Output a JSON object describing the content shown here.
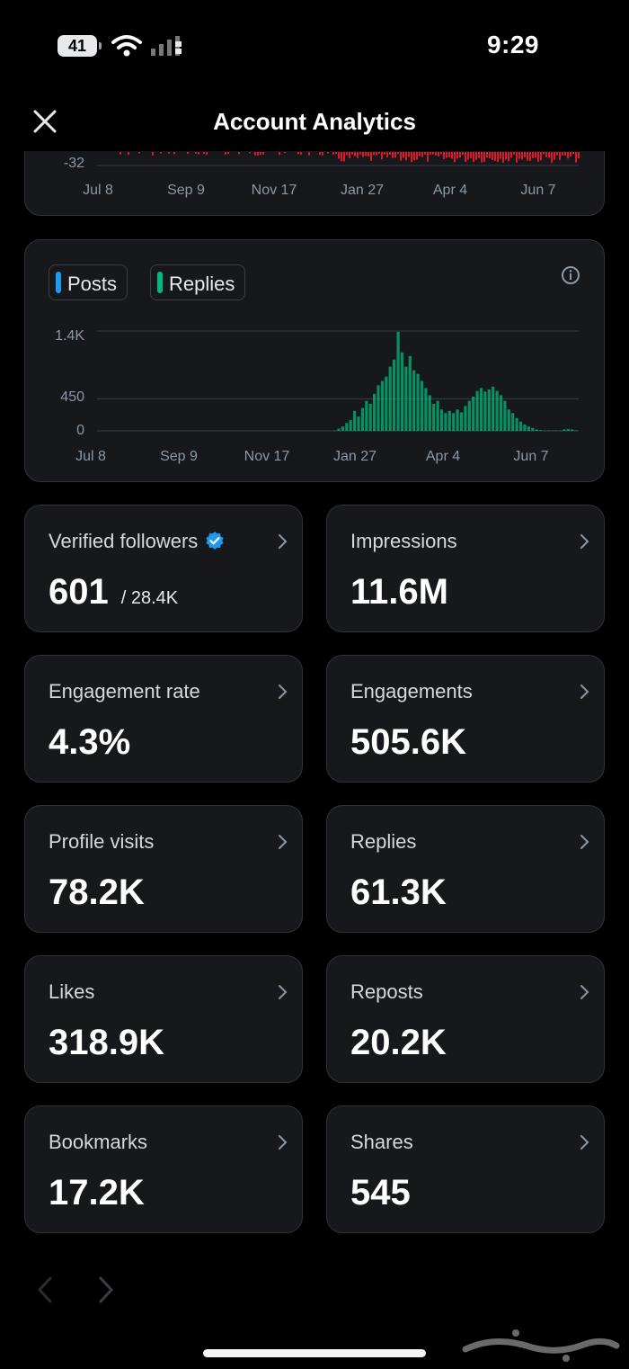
{
  "status_bar": {
    "battery": "41",
    "time": "9:29"
  },
  "header": {
    "title": "Account Analytics"
  },
  "top_chart": {
    "y_label": "-32",
    "x_ticks": [
      "Jul 8",
      "Sep 9",
      "Nov 17",
      "Jan 27",
      "Apr 4",
      "Jun 7"
    ],
    "bar_color": "#e0172a"
  },
  "chart_data": {
    "type": "bar",
    "legend": [
      "Posts",
      "Replies"
    ],
    "series": [
      {
        "name": "Posts",
        "color": "#1d9bf0",
        "values": []
      },
      {
        "name": "Replies",
        "color": "#00ba7c",
        "values": [
          5,
          30,
          60,
          110,
          150,
          280,
          200,
          320,
          420,
          380,
          520,
          640,
          700,
          760,
          900,
          1000,
          1390,
          1100,
          900,
          1050,
          850,
          800,
          700,
          600,
          500,
          380,
          420,
          300,
          250,
          280,
          250,
          300,
          260,
          350,
          420,
          480,
          560,
          600,
          550,
          580,
          620,
          560,
          500,
          420,
          300,
          250,
          180,
          130,
          90,
          60,
          40,
          20,
          10,
          5,
          5,
          5,
          5,
          5,
          20,
          25,
          20,
          5
        ]
      }
    ],
    "x_ticks": [
      "Jul 8",
      "Sep 9",
      "Nov 17",
      "Jan 27",
      "Apr 4",
      "Jun 7"
    ],
    "y_ticks": [
      "1.4K",
      "450",
      "0"
    ],
    "ylim": [
      0,
      1400
    ]
  },
  "metrics": [
    {
      "label": "Verified followers",
      "value": "601",
      "sub": "/ 28.4K",
      "verified": true
    },
    {
      "label": "Impressions",
      "value": "11.6M"
    },
    {
      "label": "Engagement rate",
      "value": "4.3%"
    },
    {
      "label": "Engagements",
      "value": "505.6K"
    },
    {
      "label": "Profile visits",
      "value": "78.2K"
    },
    {
      "label": "Replies",
      "value": "61.3K"
    },
    {
      "label": "Likes",
      "value": "318.9K"
    },
    {
      "label": "Reposts",
      "value": "20.2K"
    },
    {
      "label": "Bookmarks",
      "value": "17.2K"
    },
    {
      "label": "Shares",
      "value": "545"
    }
  ],
  "colors": {
    "accent": "#1d9bf0",
    "card_bg": "#16181c",
    "border": "#2f3336",
    "muted": "#8b98a5"
  }
}
